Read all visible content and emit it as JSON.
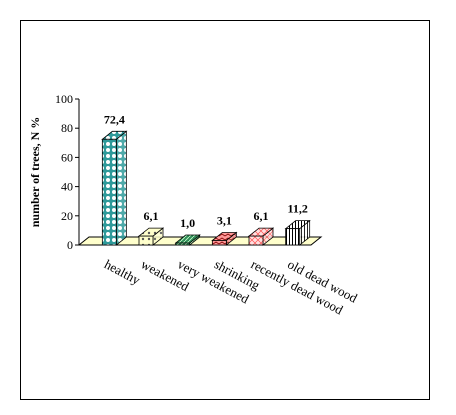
{
  "chart_data": {
    "type": "bar",
    "title": "",
    "xlabel": "",
    "ylabel": "number of trees, N %",
    "ylim": [
      0,
      100
    ],
    "yticks": [
      0,
      20,
      40,
      60,
      80,
      100
    ],
    "grid": false,
    "legend": false,
    "three_d": true,
    "categories": [
      "healthy",
      "weakened",
      "very weakened",
      "shrinking",
      "recently dead wood",
      "old dead wood"
    ],
    "values": [
      72.4,
      6.1,
      1.0,
      3.1,
      6.1,
      11.2
    ],
    "data_labels": [
      "72,4",
      "6,1",
      "1,0",
      "3,1",
      "6,1",
      "11,2"
    ],
    "bar_styles": [
      {
        "fill": "#2f9a9a",
        "pattern": "dots-teal"
      },
      {
        "fill": "#ffffcc",
        "pattern": "dots-sparse"
      },
      {
        "fill": "#2e8b57",
        "pattern": "diag"
      },
      {
        "fill": "#ff9999",
        "pattern": "wave"
      },
      {
        "fill": "#ffe0e0",
        "pattern": "cross-red"
      },
      {
        "fill": "#ffffff",
        "pattern": "vlines"
      }
    ],
    "floor_color": "#ffffcc"
  }
}
